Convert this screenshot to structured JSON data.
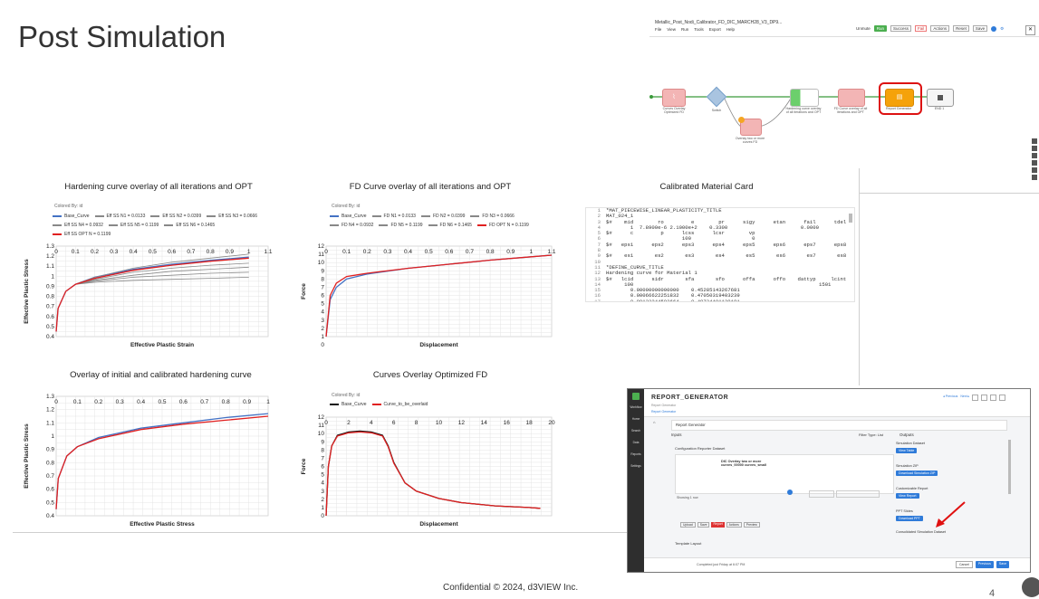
{
  "slide": {
    "title": "Post Simulation",
    "footer": "Confidential © 2024, d3VIEW Inc.",
    "page_number": "4"
  },
  "workflow": {
    "window_title": "Metallic_Post_Nodi_Calibrator_FD_DIC_MARCH28_V3_DP9...",
    "menu": [
      "File",
      "View",
      "Run",
      "Tools",
      "Export",
      "Help"
    ],
    "toolbar": [
      "Unmute",
      "Run",
      "Success",
      "Fail",
      "Actions",
      "Reset",
      "Save"
    ],
    "nodes": [
      {
        "label": "Curves Overlay Optimized FD",
        "kind": "chart"
      },
      {
        "label": "Switch",
        "kind": "decision"
      },
      {
        "label": "Overlay two or more curves FD",
        "kind": "chart"
      },
      {
        "label": "Hardening curve overlay of all iterations and OPT",
        "kind": "chart"
      },
      {
        "label": "FD Curve overlay of all iterations and OPT",
        "kind": "chart"
      },
      {
        "label": "Report Generator",
        "kind": "report"
      },
      {
        "label": "END 1",
        "kind": "end"
      }
    ]
  },
  "charts": {
    "hardening": {
      "title": "Hardening curve overlay of all iterations and OPT",
      "colored_by": "Colored By: id",
      "legend": [
        "Base_Curve",
        "Eff SS N1 = 0.0133",
        "Eff SS N2 = 0.0399",
        "Eff SS N3 = 0.0666",
        "Eff SS N4 = 0.0932",
        "Eff SS N5 = 0.1199",
        "Eff SS N6 = 0.1465",
        "Eff SS OPT N = 0.1199"
      ],
      "xlabel": "Effective Plastic Strain",
      "ylabel": "Effective Plastic Stress",
      "xticks": [
        "0",
        "0.1",
        "0.2",
        "0.3",
        "0.4",
        "0.5",
        "0.6",
        "0.7",
        "0.8",
        "0.9",
        "1",
        "1.1"
      ],
      "yticks": [
        "1.3",
        "1.2",
        "1.1",
        "1",
        "0.9",
        "0.8",
        "0.7",
        "0.6",
        "0.5",
        "0.4"
      ]
    },
    "fd": {
      "title": "FD Curve overlay of all iterations and OPT",
      "colored_by": "Colored By: id",
      "legend": [
        "Base_Curve",
        "FD N1 = 0.0133",
        "FD N2 = 0.0399",
        "FD N3 = 0.0666",
        "FD N4 = 0.0932",
        "FD N5 = 0.1199",
        "FD N6 = 0.1465",
        "FD OPT N = 0.1199"
      ],
      "xlabel": "Displacement",
      "ylabel": "Force",
      "xticks": [
        "0",
        "0.1",
        "0.2",
        "0.3",
        "0.4",
        "0.5",
        "0.6",
        "0.7",
        "0.8",
        "0.9",
        "1",
        "1.1"
      ],
      "yticks": [
        "12",
        "11",
        "10",
        "9",
        "8",
        "7",
        "6",
        "5",
        "4",
        "3",
        "2",
        "1",
        "0"
      ]
    },
    "initial_vs_calibrated": {
      "title": "Overlay of initial and calibrated hardening curve",
      "xlabel": "Effective Plastic Stress",
      "ylabel": "Effective Plastic Stress",
      "xticks": [
        "0",
        "0.1",
        "0.2",
        "0.3",
        "0.4",
        "0.5",
        "0.6",
        "0.7",
        "0.8",
        "0.9",
        "1"
      ],
      "yticks": [
        "1.3",
        "1.2",
        "1.1",
        "1",
        "0.9",
        "0.8",
        "0.7",
        "0.6",
        "0.5",
        "0.4"
      ]
    },
    "optimized_fd": {
      "title": "Curves Overlay Optimized FD",
      "colored_by": "Colored By: id",
      "legend": [
        "Base_Curve",
        "Curve_to_be_overlaid"
      ],
      "xlabel": "Displacement",
      "ylabel": "Force",
      "xticks": [
        "0",
        "2",
        "4",
        "6",
        "8",
        "10",
        "12",
        "14",
        "16",
        "18",
        "20"
      ],
      "yticks": [
        "12",
        "11",
        "10",
        "9",
        "8",
        "7",
        "6",
        "5",
        "4",
        "3",
        "2",
        "1",
        "0"
      ]
    }
  },
  "material_card": {
    "title": "Calibrated Material Card",
    "lines": [
      "*MAT_PIECEWISE_LINEAR_PLASTICITY_TITLE",
      "MAT_024_1",
      "$#    mid        ro         e        pr      sigy      etan      fail      tdel",
      "        1  7.8900e-6 2.1000e+2    0.3300                        0.0000",
      "$#      c         p      lcss      lcsr        vp",
      "                         100                    0",
      "$#   eps1      eps2      eps3      eps4      eps5      eps6      eps7      eps8",
      "",
      "$#    es1       es2       es3       es4       es5       es6       es7       es8",
      "",
      "*DEFINE_CURVE_TITLE",
      "Hardening curve for Material 1",
      "$#   lcid      sidr       sfa       sfo      offa      offo    dattyp     lcint",
      "      100                                                             1501",
      "        0.00000000000000    0.45285143267681",
      "        0.00066622251832    0.47050319403239",
      "        0.00133244503664    0.48734401139181",
      "        0.00199866755496    0.50..."
    ]
  },
  "report_generator": {
    "title": "REPORT_GENERATOR",
    "subtitle": "Report Generator",
    "breadcrumb": "Report Generator",
    "section": "Report Generator",
    "inputs_label": "Inputs",
    "outputs_label": "Outputs",
    "config_label": "Configuration Reporter Dataset",
    "curve_text": "DIC Overlay two or more curves_00000 curves_small",
    "showing": "Showing 1 row",
    "filter_label": "Filter Type: List",
    "sidebar": [
      "Workflow",
      "Home",
      "Search",
      "Data",
      "Reports",
      "Settings"
    ],
    "outputs": [
      {
        "label": "Simulation Dataset",
        "button": "View Table"
      },
      {
        "label": "Simulation ZIP",
        "button": "Download Simulation ZIP"
      },
      {
        "label": "Customizable Report",
        "button": "View Report"
      },
      {
        "label": "PPT Slides",
        "button": "Download PPT"
      },
      {
        "label": "Consolidated Simulation Dataset",
        "button": ""
      }
    ],
    "template_label": "Template Layout",
    "footer_status": "Completed just Friday at 6:07 PM",
    "footer_buttons": [
      "Cancel",
      "Previous",
      "Save"
    ],
    "toolbar_buttons": [
      "Upload",
      "Save",
      "Report",
      "Actions",
      "Preview"
    ]
  },
  "chart_data": [
    {
      "type": "line",
      "title": "Hardening curve overlay of all iterations and OPT",
      "xlabel": "Effective Plastic Strain",
      "ylabel": "Effective Plastic Stress",
      "xlim": [
        0,
        1.1
      ],
      "ylim": [
        0.4,
        1.3
      ],
      "series": [
        {
          "name": "Base_Curve",
          "color": "#4472c4",
          "x": [
            0,
            0.01,
            0.05,
            0.1,
            0.2,
            0.4,
            0.6,
            0.8,
            1.0
          ],
          "y": [
            0.45,
            0.68,
            0.85,
            0.92,
            0.99,
            1.07,
            1.12,
            1.16,
            1.19
          ]
        },
        {
          "name": "Eff SS N1 = 0.0133",
          "color": "#888888",
          "x": [
            0.1,
            0.2,
            0.4,
            0.6,
            0.8,
            1.0
          ],
          "y": [
            0.92,
            0.94,
            0.96,
            0.97,
            0.98,
            0.99
          ]
        },
        {
          "name": "Eff SS N2 = 0.0399",
          "color": "#888888",
          "x": [
            0.1,
            0.2,
            0.4,
            0.6,
            0.8,
            1.0
          ],
          "y": [
            0.92,
            0.95,
            0.99,
            1.01,
            1.03,
            1.04
          ]
        },
        {
          "name": "Eff SS N3 = 0.0666",
          "color": "#888888",
          "x": [
            0.1,
            0.2,
            0.4,
            0.6,
            0.8,
            1.0
          ],
          "y": [
            0.92,
            0.96,
            1.01,
            1.05,
            1.07,
            1.09
          ]
        },
        {
          "name": "Eff SS N4 = 0.0932",
          "color": "#888888",
          "x": [
            0.1,
            0.2,
            0.4,
            0.6,
            0.8,
            1.0
          ],
          "y": [
            0.92,
            0.97,
            1.04,
            1.08,
            1.11,
            1.13
          ]
        },
        {
          "name": "Eff SS N5 = 0.1199",
          "color": "#888888",
          "x": [
            0.1,
            0.2,
            0.4,
            0.6,
            0.8,
            1.0
          ],
          "y": [
            0.92,
            0.98,
            1.06,
            1.11,
            1.15,
            1.18
          ]
        },
        {
          "name": "Eff SS N6 = 0.1465",
          "color": "#888888",
          "x": [
            0.1,
            0.2,
            0.4,
            0.6,
            0.8,
            1.0
          ],
          "y": [
            0.92,
            0.99,
            1.08,
            1.14,
            1.18,
            1.22
          ]
        },
        {
          "name": "Eff SS OPT N = 0.1199",
          "color": "#e02020",
          "x": [
            0,
            0.01,
            0.05,
            0.1,
            0.2,
            0.4,
            0.6,
            0.8,
            1.0
          ],
          "y": [
            0.45,
            0.68,
            0.85,
            0.92,
            0.98,
            1.06,
            1.11,
            1.15,
            1.18
          ]
        }
      ]
    },
    {
      "type": "line",
      "title": "FD Curve overlay of all iterations and OPT",
      "xlabel": "Displacement",
      "ylabel": "Force",
      "xlim": [
        0,
        1.1
      ],
      "ylim": [
        0,
        11
      ],
      "series": [
        {
          "name": "Base_Curve",
          "color": "#4472c4",
          "x": [
            0,
            0.02,
            0.05,
            0.1,
            0.15,
            0.2,
            0.4,
            0.6,
            0.8,
            1.0,
            1.1
          ],
          "y": [
            0,
            4.5,
            6.0,
            7.0,
            7.3,
            7.6,
            8.3,
            8.8,
            9.3,
            9.7,
            9.9
          ]
        },
        {
          "name": "FD OPT N = 0.1199",
          "color": "#e02020",
          "x": [
            0,
            0.02,
            0.05,
            0.1,
            0.15,
            0.2,
            0.4,
            0.6,
            0.8,
            1.0,
            1.1
          ],
          "y": [
            0,
            5.0,
            6.5,
            7.3,
            7.5,
            7.7,
            8.3,
            8.8,
            9.3,
            9.7,
            9.9
          ]
        }
      ]
    },
    {
      "type": "line",
      "title": "Overlay of initial and calibrated hardening curve",
      "xlabel": "Effective Plastic Stress",
      "ylabel": "Effective Plastic Stress",
      "xlim": [
        0,
        1
      ],
      "ylim": [
        0.4,
        1.3
      ],
      "series": [
        {
          "color": "#4472c4",
          "x": [
            0,
            0.01,
            0.05,
            0.1,
            0.2,
            0.4,
            0.6,
            0.8,
            1.0
          ],
          "y": [
            0.45,
            0.68,
            0.85,
            0.92,
            0.99,
            1.06,
            1.1,
            1.14,
            1.17
          ]
        },
        {
          "color": "#e02020",
          "x": [
            0,
            0.01,
            0.05,
            0.1,
            0.2,
            0.4,
            0.6,
            0.8,
            1.0
          ],
          "y": [
            0.45,
            0.68,
            0.85,
            0.92,
            0.98,
            1.05,
            1.09,
            1.12,
            1.15
          ]
        }
      ]
    },
    {
      "type": "line",
      "title": "Curves Overlay Optimized FD",
      "xlabel": "Displacement",
      "ylabel": "Force",
      "xlim": [
        0,
        20
      ],
      "ylim": [
        0,
        12
      ],
      "series": [
        {
          "name": "Base_Curve",
          "color": "#111111",
          "x": [
            0,
            0.2,
            0.5,
            1,
            2,
            3,
            4,
            5,
            5.5,
            6,
            7,
            8,
            10,
            12,
            15,
            18,
            19
          ],
          "y": [
            0,
            6,
            8.5,
            9.8,
            10.2,
            10.3,
            10.2,
            9.8,
            8.5,
            6.5,
            4.0,
            3.0,
            2.1,
            1.6,
            1.2,
            1.0,
            0.9
          ]
        },
        {
          "name": "Curve_to_be_overlaid",
          "color": "#e02020",
          "x": [
            0,
            0.2,
            0.5,
            1,
            2,
            3,
            4,
            5,
            5.5,
            6,
            7,
            8,
            10,
            12,
            15,
            18,
            19
          ],
          "y": [
            0,
            6,
            8.5,
            9.7,
            10.1,
            10.2,
            10.1,
            9.7,
            8.4,
            6.4,
            4.0,
            3.0,
            2.1,
            1.6,
            1.2,
            1.0,
            0.9
          ]
        }
      ]
    }
  ]
}
